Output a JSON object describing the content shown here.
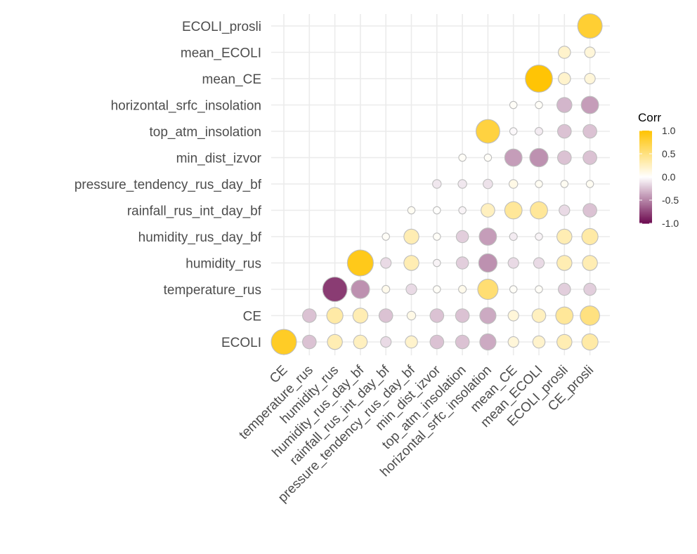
{
  "chart_data": {
    "type": "heatmap",
    "style": "circle",
    "x_labels": [
      "CE",
      "temperature_rus",
      "humidity_rus",
      "humidity_rus_day_bf",
      "rainfall_rus_int_day_bf",
      "pressure_tendency_rus_day_bf",
      "min_dist_izvor",
      "top_atm_insolation",
      "horizontal_srfc_insolation",
      "mean_CE",
      "mean_ECOLI",
      "ECOLI_prosli",
      "CE_prosli"
    ],
    "y_labels": [
      "ECOLI",
      "CE",
      "temperature_rus",
      "humidity_rus",
      "humidity_rus_day_bf",
      "rainfall_rus_int_day_bf",
      "pressure_tendency_rus_day_bf",
      "min_dist_izvor",
      "top_atm_insolation",
      "horizontal_srfc_insolation",
      "mean_CE",
      "mean_ECOLI",
      "ECOLI_prosli"
    ],
    "matrix": [
      [
        0.85,
        -0.25,
        0.3,
        0.25,
        -0.15,
        0.2,
        -0.25,
        -0.25,
        -0.35,
        0.15,
        0.2,
        0.3,
        0.35
      ],
      [
        null,
        -0.25,
        0.35,
        0.3,
        -0.25,
        0.1,
        -0.25,
        -0.25,
        -0.35,
        0.15,
        0.25,
        0.4,
        0.5
      ],
      [
        null,
        null,
        -0.8,
        -0.45,
        0.08,
        -0.15,
        0.03,
        0.08,
        0.55,
        0.03,
        0.03,
        -0.2,
        -0.2
      ],
      [
        null,
        null,
        null,
        0.9,
        -0.15,
        0.3,
        -0.05,
        -0.2,
        -0.45,
        -0.15,
        -0.15,
        0.3,
        0.3
      ],
      [
        null,
        null,
        null,
        null,
        0.03,
        0.3,
        0.03,
        -0.2,
        -0.4,
        -0.08,
        -0.05,
        0.3,
        0.35
      ],
      [
        null,
        null,
        null,
        null,
        null,
        0.05,
        0.01,
        -0.05,
        0.25,
        0.4,
        0.4,
        -0.15,
        -0.25
      ],
      [
        null,
        null,
        null,
        null,
        null,
        null,
        -0.1,
        -0.1,
        -0.12,
        0.1,
        0.05,
        0.05,
        0.05
      ],
      [
        null,
        null,
        null,
        null,
        null,
        null,
        null,
        0.03,
        0.03,
        -0.4,
        -0.45,
        -0.25,
        -0.25
      ],
      [
        null,
        null,
        null,
        null,
        null,
        null,
        null,
        null,
        0.75,
        -0.03,
        -0.08,
        -0.25,
        -0.25
      ],
      [
        null,
        null,
        null,
        null,
        null,
        null,
        null,
        null,
        null,
        0.03,
        0.03,
        -0.3,
        -0.4
      ],
      [
        null,
        null,
        null,
        null,
        null,
        null,
        null,
        null,
        null,
        null,
        0.98,
        0.2,
        0.15
      ],
      [
        null,
        null,
        null,
        null,
        null,
        null,
        null,
        null,
        null,
        null,
        null,
        0.2,
        0.15
      ],
      [
        null,
        null,
        null,
        null,
        null,
        null,
        null,
        null,
        null,
        null,
        null,
        null,
        0.8
      ]
    ],
    "legend": {
      "title": "Corr",
      "ticks": [
        1.0,
        0.5,
        0.0,
        -0.5,
        -1.0
      ],
      "tick_labels": [
        "1.0",
        "0.5",
        "0.0",
        "-0.5",
        "-1.0"
      ],
      "placement": "right"
    },
    "colors": {
      "high": "#FFC300",
      "mid": "#FFFFFF",
      "low": "#6D0B50",
      "circle_border": "#BDBDBD",
      "grid": "#EBEBEB"
    },
    "range": [
      -1,
      1
    ],
    "grid": true
  }
}
